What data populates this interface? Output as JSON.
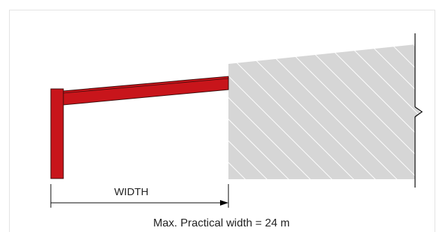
{
  "dimension_label": "WIDTH",
  "caption": "Max. Practical width = 24 m",
  "colors": {
    "beam": "#c8151b",
    "beam_outline": "#3a0a0a",
    "wall_fill": "#d6d6d6",
    "hatch": "#ffffff",
    "line": "#000000",
    "frame_border": "#e2e2e2"
  }
}
